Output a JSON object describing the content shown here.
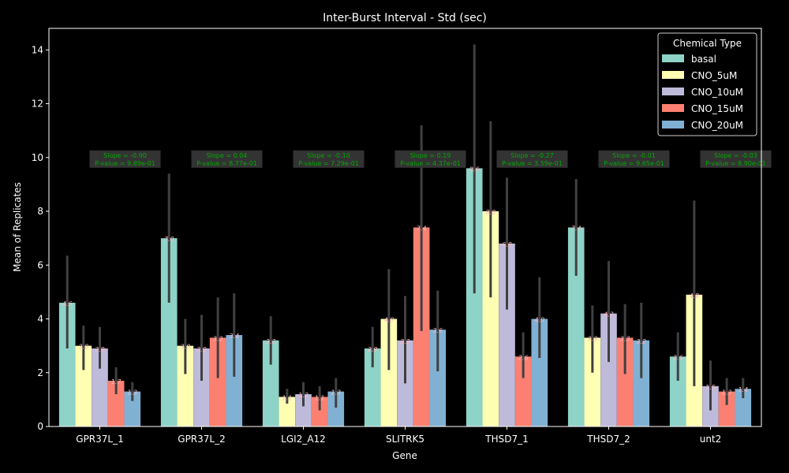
{
  "chart_data": {
    "type": "bar",
    "title": "Inter-Burst Interval - Std (sec)",
    "xlabel": "Gene",
    "ylabel": "Mean of Replicates",
    "ylim": [
      0,
      14.8
    ],
    "yticks": [
      0,
      2,
      4,
      6,
      8,
      10,
      12,
      14
    ],
    "categories": [
      "GPR37L_1",
      "GPR37L_2",
      "LGI2_A12",
      "SLITRK5",
      "THSD7_1",
      "THSD7_2",
      "unt2"
    ],
    "legend": {
      "title": "Chemical Type",
      "position": "top-right"
    },
    "series": [
      {
        "name": "basal",
        "color": "#8dd3c7",
        "values": [
          4.6,
          7.0,
          3.2,
          2.9,
          9.6,
          7.4,
          2.6
        ],
        "labels": [
          "4.6",
          "7.0",
          "3.2",
          "2.9",
          "9.6",
          "7.4",
          "2.6"
        ],
        "err_low": [
          2.9,
          4.6,
          2.3,
          2.2,
          4.95,
          5.6,
          1.7
        ],
        "err_high": [
          6.35,
          9.4,
          4.1,
          3.7,
          14.2,
          9.2,
          3.5
        ]
      },
      {
        "name": "CNO_5uM",
        "color": "#ffffb3",
        "values": [
          3.0,
          3.0,
          1.1,
          4.0,
          8.0,
          3.3,
          4.9
        ],
        "labels": [
          "3.0",
          "3.0",
          "1.1",
          "4.0",
          "8.0",
          "3.3",
          "4.9"
        ],
        "err_low": [
          2.1,
          1.95,
          0.85,
          2.1,
          4.8,
          2.0,
          1.5
        ],
        "err_high": [
          3.75,
          4.0,
          1.4,
          5.85,
          11.35,
          4.5,
          8.4
        ]
      },
      {
        "name": "CNO_10uM",
        "color": "#bebada",
        "values": [
          2.9,
          2.9,
          1.2,
          3.2,
          6.8,
          4.2,
          1.5
        ],
        "labels": [
          "2.9",
          "2.9",
          "1.2",
          "3.2",
          "6.8",
          "4.2",
          "1.5"
        ],
        "err_low": [
          2.15,
          1.7,
          0.75,
          1.6,
          4.35,
          2.4,
          0.6
        ],
        "err_high": [
          3.7,
          4.15,
          1.65,
          4.85,
          9.25,
          6.15,
          2.45
        ]
      },
      {
        "name": "CNO_15uM",
        "color": "#fb8072",
        "values": [
          1.7,
          3.3,
          1.1,
          7.4,
          2.6,
          3.3,
          1.3
        ],
        "labels": [
          "1.7",
          "3.3",
          "1.1",
          "7.4",
          "2.6",
          "3.3",
          "1.3"
        ],
        "err_low": [
          1.2,
          1.8,
          0.6,
          3.55,
          1.8,
          1.95,
          0.8
        ],
        "err_high": [
          2.2,
          4.8,
          1.5,
          11.2,
          3.5,
          4.55,
          1.8
        ]
      },
      {
        "name": "CNO_20uM",
        "color": "#80b1d3",
        "values": [
          1.3,
          3.4,
          1.3,
          3.6,
          4.0,
          3.2,
          1.4
        ],
        "labels": [
          "1.3",
          "3.4",
          "1.3",
          "3.6",
          "4.0",
          "3.2",
          "1.4"
        ],
        "err_low": [
          0.95,
          1.85,
          0.7,
          2.05,
          2.55,
          1.8,
          1.05
        ],
        "err_high": [
          1.65,
          4.95,
          1.8,
          5.05,
          5.55,
          4.6,
          1.8
        ]
      }
    ],
    "annotations": [
      {
        "category": "GPR37L_1",
        "lines": [
          "Slope = -0.90",
          "P-value = 9.89e-01"
        ]
      },
      {
        "category": "GPR37L_2",
        "lines": [
          "Slope = 0.04",
          "P-value = 8.77e-01"
        ]
      },
      {
        "category": "LGI2_A12",
        "lines": [
          "Slope = -0.10",
          "P-value = 7.29e-01"
        ]
      },
      {
        "category": "SLITRK5",
        "lines": [
          "Slope = 0.19",
          "P-value = 4.37e-01"
        ]
      },
      {
        "category": "THSD7_1",
        "lines": [
          "Slope = -0.27",
          "P-value = 3.59e-01"
        ]
      },
      {
        "category": "THSD7_2",
        "lines": [
          "Slope = -0.01",
          "P-value = 9.65e-01"
        ]
      },
      {
        "category": "unt2",
        "lines": [
          "Slope = -0.03",
          "P-value = 8.90e-01"
        ]
      }
    ],
    "annotation_y": 10.0,
    "annotation_color": "#00aa00",
    "annotation_box_color": "#333333",
    "label_color": "#ffb6c1",
    "errbar_color": "#404040",
    "axis_color": "#ffffff",
    "background": "#000000"
  }
}
